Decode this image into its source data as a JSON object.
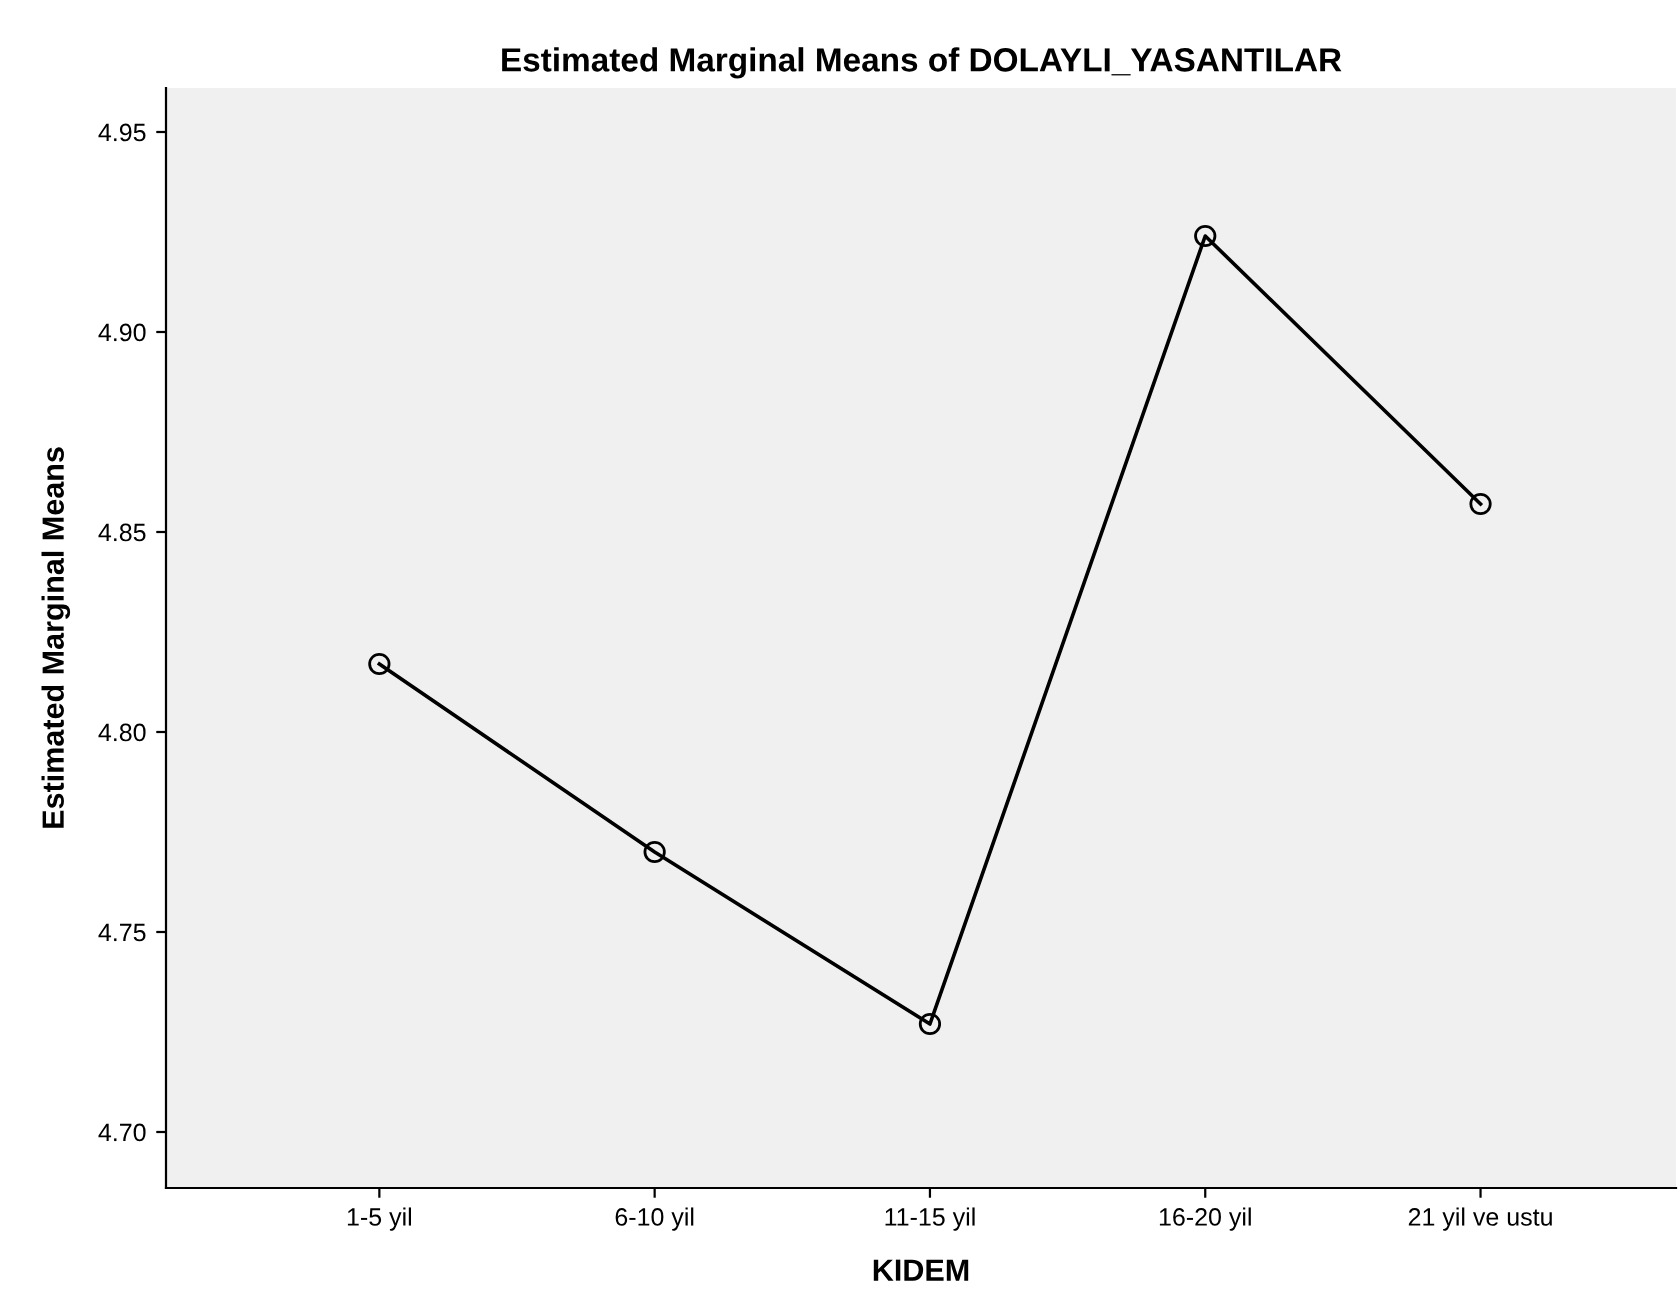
{
  "chart_data": {
    "type": "line",
    "title": "Estimated Marginal Means of DOLAYLI_YASANTILAR",
    "xlabel": "KIDEM",
    "ylabel": "Estimated Marginal Means",
    "categories": [
      "1-5 yil",
      "6-10 yil",
      "11-15 yil",
      "16-20 yil",
      "21 yil ve ustu"
    ],
    "series": [
      {
        "color": "#000000",
        "values": [
          4.817,
          4.77,
          4.727,
          4.924,
          4.857
        ]
      }
    ],
    "ylim": [
      4.686,
      4.961
    ],
    "yticks": [
      {
        "value": 4.7,
        "label": "4.70"
      },
      {
        "value": 4.75,
        "label": "4.75"
      },
      {
        "value": 4.8,
        "label": "4.80"
      },
      {
        "value": 4.85,
        "label": "4.85"
      },
      {
        "value": 4.9,
        "label": "4.90"
      },
      {
        "value": 4.95,
        "label": "4.95"
      }
    ],
    "grid": false,
    "legend": false,
    "marker": "circle",
    "line_style": "solid"
  }
}
